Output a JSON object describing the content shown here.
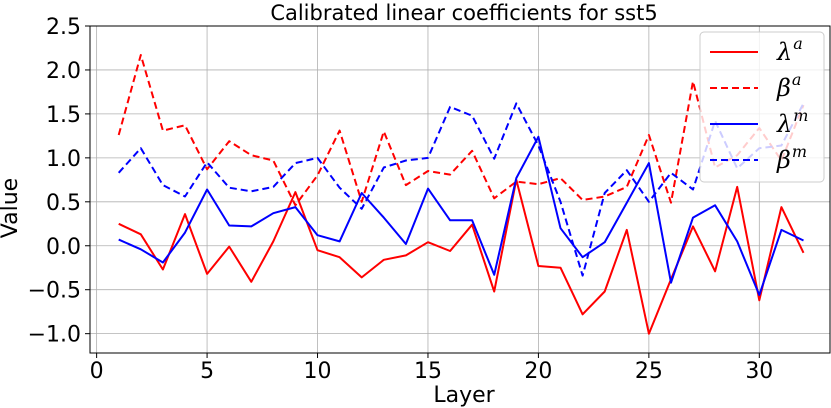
{
  "chart_data": {
    "type": "line",
    "title": "Calibrated linear coefficients for sst5",
    "xlabel": "Layer",
    "ylabel": "Value",
    "xlim": [
      -0.3,
      33.2
    ],
    "ylim": [
      -1.22,
      2.5
    ],
    "xticks": [
      0,
      5,
      10,
      15,
      20,
      25,
      30
    ],
    "yticks": [
      -1.0,
      -0.5,
      0.0,
      0.5,
      1.0,
      1.5,
      2.0,
      2.5
    ],
    "xtick_labels": [
      "0",
      "5",
      "10",
      "15",
      "20",
      "25",
      "30"
    ],
    "ytick_labels": [
      "−1.0",
      "−0.5",
      "0.0",
      "0.5",
      "1.0",
      "1.5",
      "2.0",
      "2.5"
    ],
    "grid": true,
    "legend_position": "top-right",
    "x": [
      1,
      2,
      3,
      4,
      5,
      6,
      7,
      8,
      9,
      10,
      11,
      12,
      13,
      14,
      15,
      16,
      17,
      18,
      19,
      20,
      21,
      22,
      23,
      24,
      25,
      26,
      27,
      28,
      29,
      30,
      31,
      32
    ],
    "series": [
      {
        "name": "λ^a",
        "symbol": "λ",
        "sup": "a",
        "color": "#ff0000",
        "dash": "solid",
        "values": [
          0.25,
          0.13,
          -0.27,
          0.36,
          -0.32,
          -0.01,
          -0.41,
          0.05,
          0.61,
          -0.05,
          -0.13,
          -0.36,
          -0.16,
          -0.11,
          0.04,
          -0.06,
          0.24,
          -0.52,
          0.75,
          -0.23,
          -0.25,
          -0.78,
          -0.52,
          0.18,
          -1.0,
          -0.38,
          0.22,
          -0.29,
          0.67,
          -0.62,
          0.44,
          -0.08
        ]
      },
      {
        "name": "β^a",
        "symbol": "β",
        "sup": "a",
        "color": "#ff0000",
        "dash": "dashed",
        "values": [
          1.26,
          2.17,
          1.31,
          1.37,
          0.87,
          1.19,
          1.03,
          0.97,
          0.46,
          0.8,
          1.31,
          0.5,
          1.3,
          0.69,
          0.85,
          0.81,
          1.08,
          0.54,
          0.73,
          0.7,
          0.77,
          0.52,
          0.56,
          0.67,
          1.26,
          0.49,
          1.87,
          0.89,
          1.03,
          1.34,
          0.97,
          1.6
        ]
      },
      {
        "name": "λ^m",
        "symbol": "λ",
        "sup": "m",
        "color": "#0000ff",
        "dash": "solid",
        "values": [
          0.07,
          -0.04,
          -0.19,
          0.15,
          0.64,
          0.23,
          0.22,
          0.37,
          0.44,
          0.12,
          0.05,
          0.6,
          0.32,
          0.02,
          0.65,
          0.29,
          0.29,
          -0.33,
          0.77,
          1.24,
          0.2,
          -0.13,
          0.04,
          0.49,
          0.94,
          -0.42,
          0.32,
          0.46,
          0.05,
          -0.56,
          0.18,
          0.06
        ]
      },
      {
        "name": "β^m",
        "symbol": "β",
        "sup": "m",
        "color": "#0000ff",
        "dash": "dashed",
        "values": [
          0.83,
          1.11,
          0.69,
          0.56,
          0.95,
          0.66,
          0.62,
          0.67,
          0.94,
          1.0,
          0.66,
          0.42,
          0.89,
          0.97,
          1.0,
          1.58,
          1.48,
          0.99,
          1.62,
          1.14,
          0.5,
          -0.34,
          0.6,
          0.86,
          0.5,
          0.83,
          0.64,
          1.42,
          0.88,
          1.11,
          1.14,
          1.62
        ]
      }
    ]
  }
}
